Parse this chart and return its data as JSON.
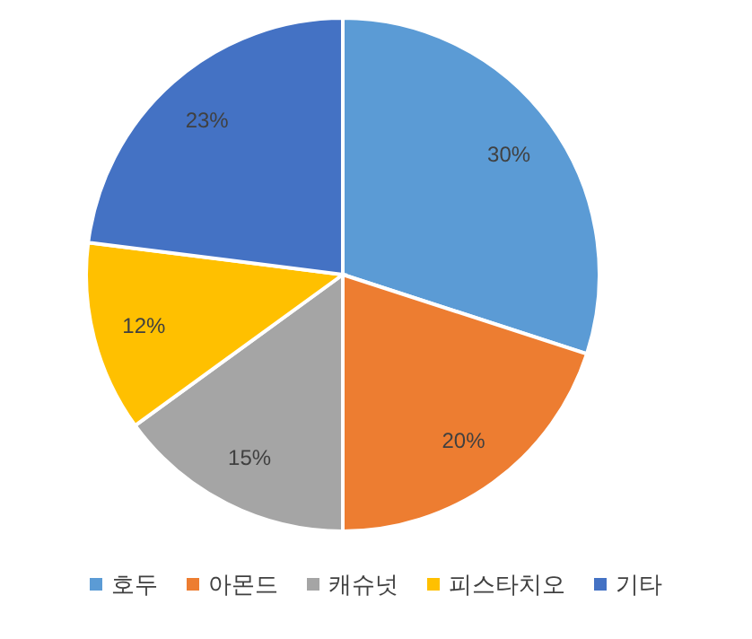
{
  "chart_data": {
    "type": "pie",
    "categories": [
      "호두",
      "아몬드",
      "캐슈넛",
      "피스타치오",
      "기타"
    ],
    "values": [
      30,
      20,
      15,
      12,
      23
    ],
    "colors": [
      "#5b9bd5",
      "#ed7d31",
      "#a5a5a5",
      "#ffc000",
      "#4472c4"
    ],
    "value_labels": [
      "30%",
      "20%",
      "15%",
      "12%",
      "23%"
    ],
    "legend": "bottom"
  }
}
